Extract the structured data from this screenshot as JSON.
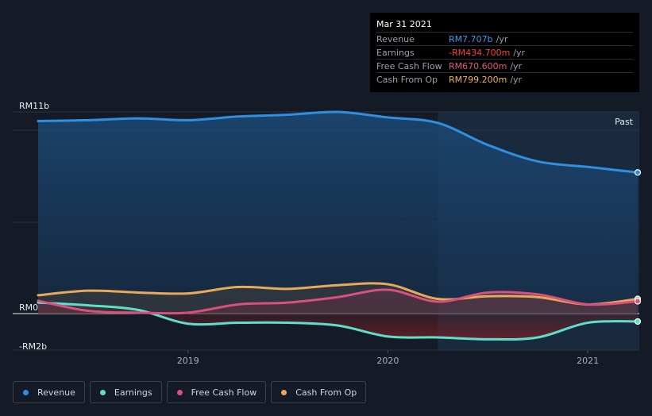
{
  "tooltip": {
    "date": "Mar 31 2021",
    "rows": [
      {
        "label": "Revenue",
        "value": "RM7.707b",
        "unit": "/yr",
        "color": "#3a9be8"
      },
      {
        "label": "Earnings",
        "value": "-RM434.700m",
        "unit": "/yr",
        "color": "#f0433a"
      },
      {
        "label": "Free Cash Flow",
        "value": "RM670.600m",
        "unit": "/yr",
        "color": "#e0567f"
      },
      {
        "label": "Cash From Op",
        "value": "RM799.200m",
        "unit": "/yr",
        "color": "#f0b45a"
      }
    ]
  },
  "legend": [
    {
      "label": "Revenue",
      "color": "#2f8fe0"
    },
    {
      "label": "Earnings",
      "color": "#5ee0c8"
    },
    {
      "label": "Free Cash Flow",
      "color": "#d9507c"
    },
    {
      "label": "Cash From Op",
      "color": "#e8a95a"
    }
  ],
  "chart_data": {
    "type": "line",
    "title": "",
    "xlabel": "",
    "ylabel": "",
    "y_unit": "RM billions",
    "ylim": [
      -2,
      11
    ],
    "y_tick_labels": [
      "RM11b",
      "RM0",
      "-RM2b"
    ],
    "x_ticks": [
      2019,
      2020,
      2021
    ],
    "x_tick_labels": [
      "2019",
      "2020",
      "2021"
    ],
    "xlim": [
      2018.25,
      2021.25
    ],
    "past_label": "Past",
    "past_region_start": 2020.25,
    "series": [
      {
        "name": "Revenue",
        "color": "#2f8fe0",
        "x": [
          2018.25,
          2018.5,
          2018.75,
          2019.0,
          2019.25,
          2019.5,
          2019.75,
          2020.0,
          2020.25,
          2020.5,
          2020.75,
          2021.0,
          2021.25
        ],
        "values": [
          10.5,
          10.55,
          10.65,
          10.55,
          10.75,
          10.85,
          11.0,
          10.7,
          10.4,
          9.2,
          8.3,
          8.0,
          7.7
        ]
      },
      {
        "name": "Earnings",
        "color": "#5ee0c8",
        "x": [
          2018.25,
          2018.5,
          2018.75,
          2019.0,
          2019.25,
          2019.5,
          2019.75,
          2020.0,
          2020.25,
          2020.5,
          2020.75,
          2021.0,
          2021.25
        ],
        "values": [
          0.6,
          0.45,
          0.2,
          -0.55,
          -0.5,
          -0.5,
          -0.65,
          -1.25,
          -1.3,
          -1.4,
          -1.3,
          -0.5,
          -0.43
        ]
      },
      {
        "name": "Free Cash Flow",
        "color": "#d9507c",
        "x": [
          2018.25,
          2018.5,
          2018.75,
          2019.0,
          2019.25,
          2019.5,
          2019.75,
          2020.0,
          2020.25,
          2020.5,
          2020.75,
          2021.0,
          2021.25
        ],
        "values": [
          0.7,
          0.15,
          0.05,
          0.05,
          0.5,
          0.6,
          0.9,
          1.3,
          0.65,
          1.15,
          1.05,
          0.5,
          0.67
        ]
      },
      {
        "name": "Cash From Op",
        "color": "#e8a95a",
        "x": [
          2018.25,
          2018.5,
          2018.75,
          2019.0,
          2019.25,
          2019.5,
          2019.75,
          2020.0,
          2020.25,
          2020.5,
          2020.75,
          2021.0,
          2021.25
        ],
        "values": [
          1.0,
          1.25,
          1.15,
          1.1,
          1.45,
          1.35,
          1.55,
          1.6,
          0.8,
          0.95,
          0.9,
          0.5,
          0.8
        ]
      }
    ]
  }
}
